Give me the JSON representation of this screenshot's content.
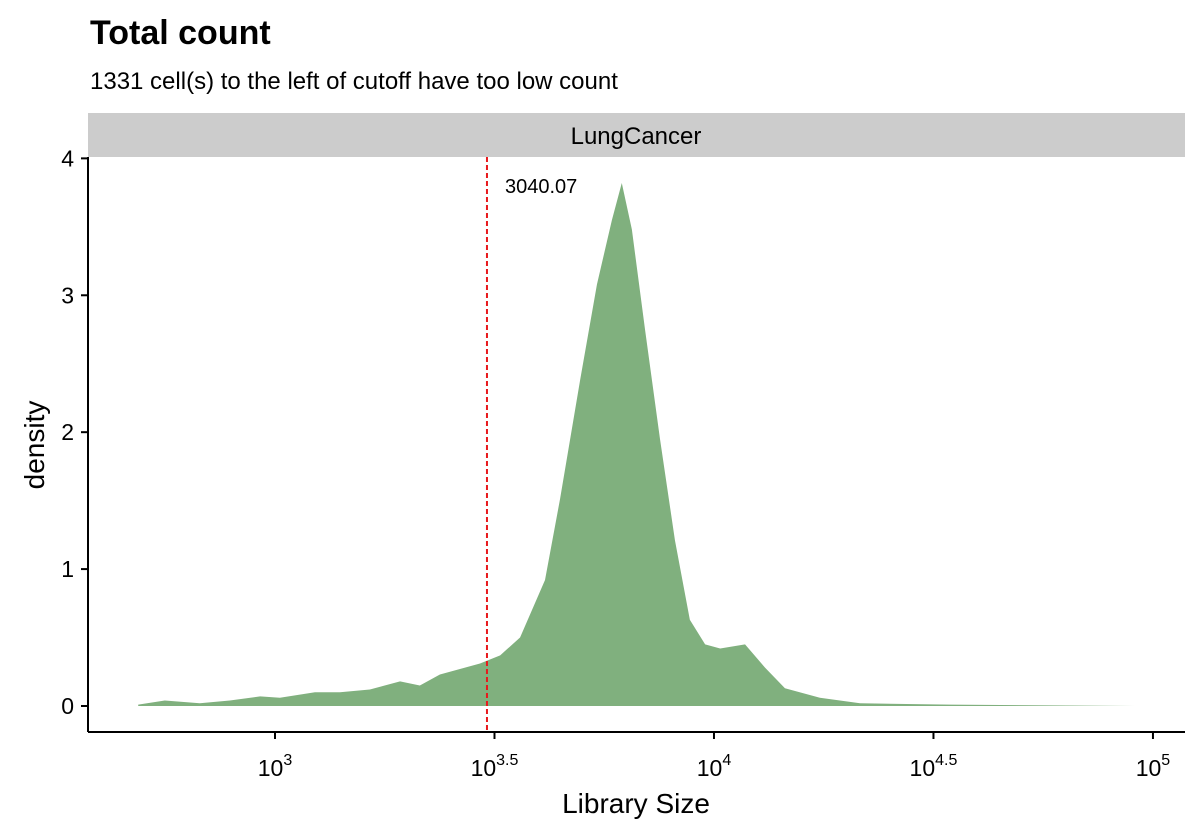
{
  "chart_data": {
    "type": "area",
    "title": "Total count",
    "subtitle": "1331 cell(s) to the left of cutoff have too low count",
    "facet": "LungCancer",
    "x_label": "Library Size",
    "y_label": "density",
    "xscale": "log",
    "color": "#80b07e",
    "cutoff_color": "#e8191c",
    "cutoff": 3040.07,
    "x": [
      488,
      561,
      674,
      789,
      925,
      1026,
      1233,
      1406,
      1645,
      1927,
      2138,
      2375,
      2931,
      3258,
      3616,
      4122,
      4459,
      4955,
      5413,
      5855,
      6166,
      6501,
      6965,
      7534,
      8149,
      8811,
      9546,
      10330,
      11770,
      13070,
      14510,
      17430,
      21510,
      34510,
      91000
    ],
    "values": [
      0.01,
      0.04,
      0.02,
      0.04,
      0.07,
      0.06,
      0.1,
      0.1,
      0.12,
      0.18,
      0.15,
      0.23,
      0.31,
      0.37,
      0.5,
      0.92,
      1.51,
      2.38,
      3.08,
      3.55,
      3.82,
      3.48,
      2.75,
      1.95,
      1.21,
      0.63,
      0.45,
      0.42,
      0.45,
      0.28,
      0.13,
      0.06,
      0.02,
      0.01,
      0
    ],
    "xlim": [
      375,
      118300
    ],
    "xticks": [
      {
        "value": 1000,
        "label": "10",
        "exponent": "3"
      },
      {
        "value": 3162.28,
        "label": "10",
        "exponent": "3.5"
      },
      {
        "value": 10000,
        "label": "10",
        "exponent": "4"
      },
      {
        "value": 31622.78,
        "label": "10",
        "exponent": "4.5"
      },
      {
        "value": 100000,
        "label": "10",
        "exponent": "5"
      }
    ],
    "ylim": [
      -0.19,
      4.01
    ],
    "yticks": [
      0,
      1,
      2,
      3,
      4
    ]
  }
}
